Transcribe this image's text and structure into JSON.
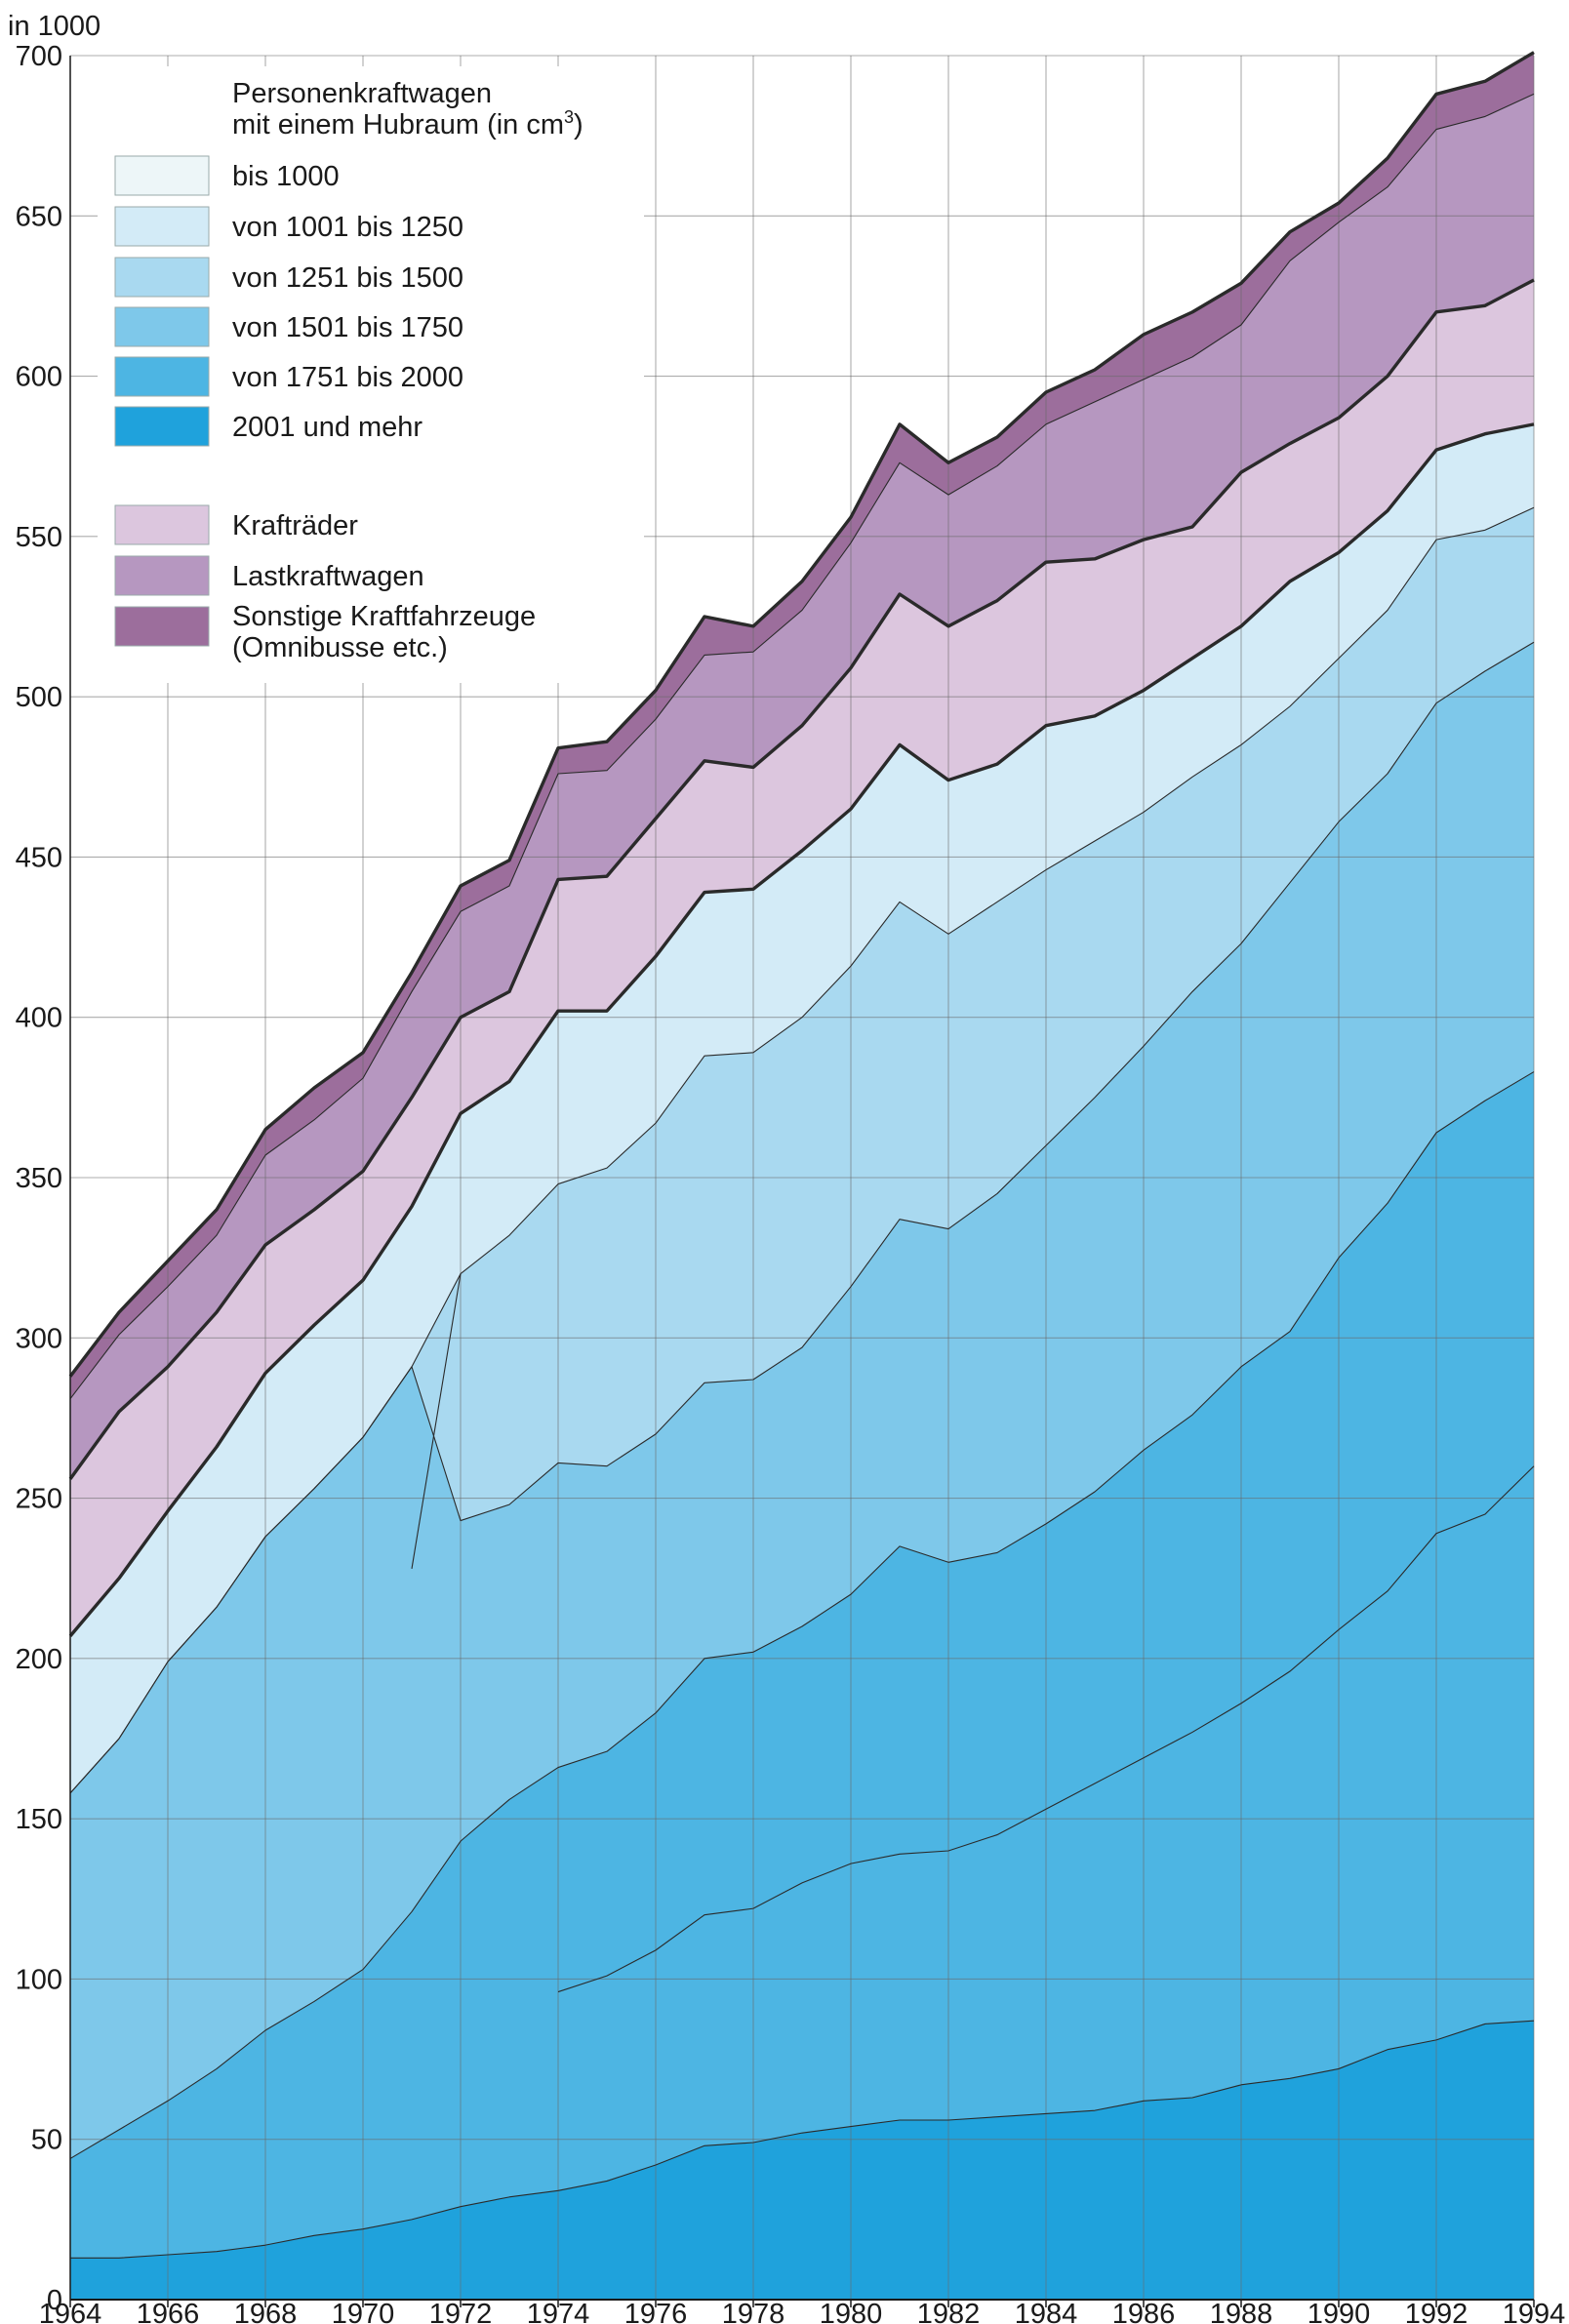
{
  "chart_data": {
    "type": "area",
    "stacked": true,
    "unit_label": "in 1000",
    "x": [
      1964,
      1965,
      1966,
      1967,
      1968,
      1969,
      1970,
      1971,
      1972,
      1973,
      1974,
      1975,
      1976,
      1977,
      1978,
      1979,
      1980,
      1981,
      1982,
      1983,
      1984,
      1985,
      1986,
      1987,
      1988,
      1989,
      1990,
      1991,
      1992,
      1993,
      1994
    ],
    "x_tick_labels": [
      "1964",
      "1966",
      "1968",
      "1970",
      "1972",
      "1974",
      "1976",
      "1978",
      "1980",
      "1982",
      "1984",
      "1986",
      "1988",
      "1990",
      "1992",
      "1994"
    ],
    "x_tick_values": [
      1964,
      1966,
      1968,
      1970,
      1972,
      1974,
      1976,
      1978,
      1980,
      1982,
      1984,
      1986,
      1988,
      1990,
      1992,
      1994
    ],
    "ylim": [
      0,
      700
    ],
    "y_ticks": [
      0,
      50,
      100,
      150,
      200,
      250,
      300,
      350,
      400,
      450,
      500,
      550,
      600,
      650,
      700
    ],
    "grid": true,
    "legend_position": "top-left",
    "legend_title": [
      "Personenkraftwagen",
      "mit einem Hubraum (in cm³)"
    ],
    "cumulative_series": [
      {
        "name": "2001 und mehr",
        "color": "#1fa2dc",
        "values": [
          13,
          13,
          14,
          15,
          17,
          20,
          22,
          25,
          29,
          32,
          34,
          37,
          42,
          48,
          49,
          52,
          54,
          56,
          56,
          57,
          58,
          59,
          62,
          63,
          67,
          69,
          72,
          78,
          81,
          86,
          87
        ]
      },
      {
        "name": "von 1751 bis 2000",
        "color": "#4db5e3",
        "values": [
          44,
          53,
          62,
          72,
          84,
          93,
          103,
          121,
          143,
          156,
          166,
          171,
          183,
          200,
          202,
          210,
          220,
          235,
          230,
          233,
          242,
          252,
          265,
          276,
          291,
          302,
          325,
          342,
          364,
          374,
          383
        ]
      },
      {
        "name": "von 1501 bis 1750",
        "color": "#7ec8ea",
        "values": [
          158,
          175,
          199,
          216,
          238,
          253,
          269,
          291,
          243,
          248,
          261,
          260,
          270,
          286,
          287,
          297,
          316,
          337,
          334,
          345,
          360,
          375,
          391,
          408,
          423,
          442,
          461,
          476,
          498,
          508,
          517
        ]
      },
      {
        "name": "von 1251 bis 1500",
        "color": "#a9d9f0",
        "values": [
          158,
          175,
          199,
          216,
          238,
          253,
          269,
          291,
          320,
          332,
          348,
          353,
          367,
          388,
          389,
          400,
          416,
          436,
          426,
          436,
          446,
          455,
          464,
          475,
          485,
          497,
          512,
          527,
          549,
          552,
          559
        ]
      },
      {
        "name": "von 1001 bis 1250",
        "color": "#d3ebf7",
        "values": [
          207,
          225,
          246,
          266,
          289,
          304,
          318,
          341,
          370,
          380,
          402,
          402,
          419,
          439,
          440,
          452,
          465,
          485,
          474,
          479,
          491,
          494,
          502,
          512,
          522,
          536,
          545,
          558,
          577,
          582,
          585
        ]
      },
      {
        "name": "bis 1000",
        "color": "#edf6f8",
        "values": [
          207,
          225,
          246,
          266,
          289,
          304,
          318,
          341,
          370,
          380,
          402,
          402,
          419,
          439,
          440,
          452,
          465,
          485,
          474,
          479,
          491,
          494,
          502,
          512,
          522,
          536,
          545,
          558,
          577,
          582,
          585
        ]
      },
      {
        "name": "Krafträder",
        "color": "#dcc6de",
        "values": [
          256,
          277,
          291,
          308,
          329,
          340,
          352,
          375,
          400,
          408,
          443,
          444,
          462,
          480,
          478,
          491,
          509,
          532,
          522,
          530,
          542,
          543,
          549,
          553,
          570,
          579,
          587,
          600,
          620,
          622,
          630
        ]
      },
      {
        "name": "Lastkraftwagen",
        "color": "#b697c0",
        "values": [
          281,
          301,
          316,
          332,
          357,
          368,
          381,
          408,
          433,
          441,
          476,
          477,
          493,
          513,
          514,
          527,
          548,
          573,
          563,
          572,
          585,
          592,
          599,
          606,
          616,
          636,
          648,
          659,
          677,
          681,
          688
        ]
      },
      {
        "name": "Sonstige Kraftfahrzeuge",
        "color": "#9c6e9c",
        "values": [
          288,
          308,
          324,
          340,
          365,
          378,
          389,
          414,
          441,
          449,
          484,
          486,
          502,
          525,
          522,
          536,
          556,
          585,
          573,
          581,
          595,
          602,
          613,
          620,
          629,
          645,
          654,
          668,
          688,
          692,
          701
        ]
      }
    ],
    "legend": [
      {
        "label": "bis  1000",
        "color": "#edf6f8"
      },
      {
        "label": "von 1001 bis 1250",
        "color": "#d3ebf7"
      },
      {
        "label": "von 1251 bis 1500",
        "color": "#a9d9f0"
      },
      {
        "label": "von 1501 bis 1750",
        "color": "#7ec8ea"
      },
      {
        "label": "von 1751 bis 2000",
        "color": "#4db5e3"
      },
      {
        "label": "2001 und mehr",
        "color": "#1fa2dc"
      },
      {
        "label": "Krafträder",
        "color": "#dcc6de"
      },
      {
        "label": "Lastkraftwagen",
        "color": "#b697c0"
      },
      {
        "label": [
          "Sonstige Kraftfahrzeuge",
          "(Omnibusse etc.)"
        ],
        "color": "#9c6e9c"
      }
    ],
    "thick_boundaries": [
      "von 1001 bis 1250",
      "Krafträder",
      "Sonstige Kraftfahrzeuge"
    ],
    "partial_boundaries": [
      {
        "from_year": 1974,
        "values": {
          "1974": 96,
          "1975": 101,
          "1976": 109,
          "1977": 120,
          "1978": 122,
          "1979": 130,
          "1980": 136,
          "1981": 139,
          "1982": 140,
          "1983": 145,
          "1984": 153,
          "1985": 161,
          "1986": 169,
          "1987": 177,
          "1988": 186,
          "1989": 196,
          "1990": 209,
          "1991": 221,
          "1992": 239,
          "1993": 245,
          "1994": 260
        }
      },
      {
        "from_year": 1971,
        "values": {
          "1971": 228
        }
      }
    ]
  }
}
